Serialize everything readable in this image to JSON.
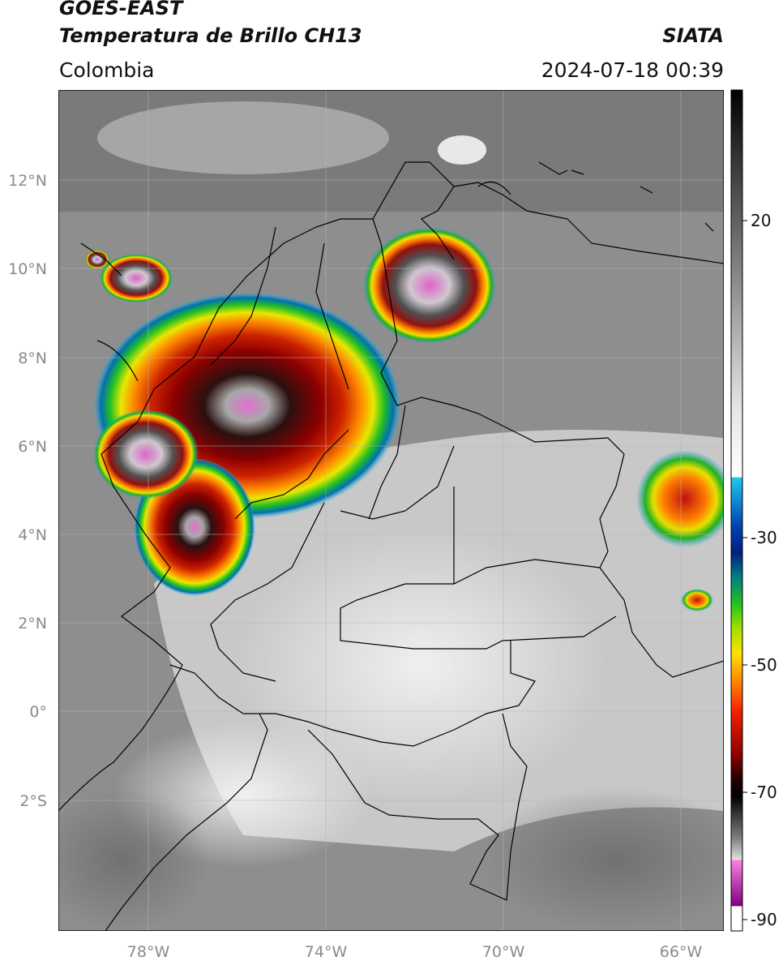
{
  "header": {
    "satellite": "GOES-EAST",
    "product": "Temperatura de Brillo CH13",
    "organization": "SIATA",
    "region": "Colombia",
    "datetime": "2024-07-18 00:39"
  },
  "map": {
    "lat_labels": [
      "12°N",
      "10°N",
      "8°N",
      "6°N",
      "4°N",
      "2°N",
      "0°",
      "2°S"
    ],
    "lon_labels": [
      "78°W",
      "74°W",
      "70°W",
      "66°W"
    ],
    "colors": {
      "background": "#8c8c8c",
      "land_light": "#c4c4c4",
      "coastline": "#000000",
      "gridline": "#b0b0b0"
    }
  },
  "colorbar": {
    "ticks": [
      "20",
      "-30",
      "-50",
      "-70",
      "-90"
    ],
    "range": [
      -92,
      35
    ]
  }
}
